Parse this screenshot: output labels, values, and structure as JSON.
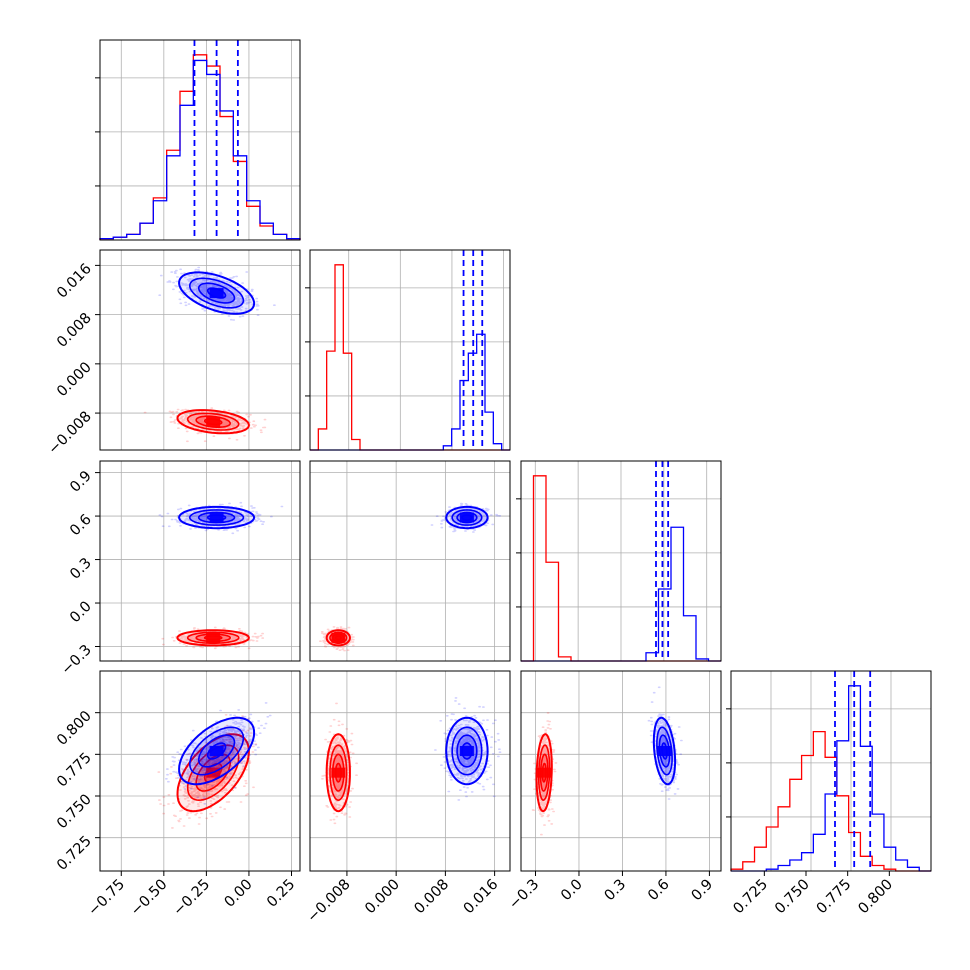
{
  "chart_data": {
    "type": "corner",
    "grid": true,
    "colors": {
      "series_a": "#0000ff",
      "series_b": "#ff0000"
    },
    "series": [
      {
        "color": "#0000ff",
        "means": [
          -0.19,
          0.0115,
          0.59,
          0.777
        ],
        "stds": [
          0.105,
          0.0016,
          0.035,
          0.0095
        ],
        "corrs": [
          [
            0,
            1,
            -0.5
          ],
          [
            0,
            3,
            0.55
          ],
          [
            2,
            3,
            -0.3
          ]
        ],
        "quantiles": {
          "0": [
            -0.32,
            -0.19,
            -0.065
          ],
          "1": [
            0.0098,
            0.0113,
            0.0127
          ],
          "2": [
            0.545,
            0.59,
            0.63
          ],
          "3": [
            0.765,
            0.777,
            0.787
          ]
        }
      },
      {
        "color": "#ff0000",
        "means": [
          -0.21,
          -0.0094,
          -0.24,
          0.764
        ],
        "stds": [
          0.1,
          0.0009,
          0.025,
          0.011
        ],
        "corrs": [
          [
            0,
            1,
            -0.3
          ],
          [
            0,
            3,
            0.55
          ],
          [
            2,
            3,
            0.15
          ]
        ]
      }
    ],
    "hists": [
      {
        "x": [
          -0.875,
          0.3
        ],
        "blue": [
          0.5,
          1,
          2,
          6,
          14,
          30,
          48,
          64,
          59,
          46,
          30,
          14,
          6,
          2,
          0.5
        ],
        "red": [
          0.5,
          1,
          2,
          6,
          15,
          32,
          53,
          66,
          62,
          44,
          28,
          12,
          5,
          2,
          0.5
        ]
      },
      {
        "x": [
          -0.014,
          0.017
        ],
        "blue": [
          0,
          0,
          0,
          0,
          0,
          0,
          0,
          0,
          0,
          0,
          0,
          0,
          0,
          0,
          0,
          0,
          2,
          10,
          33,
          46,
          55,
          18,
          3,
          0
        ],
        "red": [
          0,
          10,
          47,
          88,
          46,
          5,
          0,
          0,
          0,
          0,
          0,
          0,
          0,
          0,
          0,
          0,
          0,
          0,
          0,
          0,
          0,
          0,
          0,
          0
        ]
      },
      {
        "x": [
          -0.4,
          1.0
        ],
        "blue": [
          0,
          0,
          0,
          0,
          0,
          0,
          0,
          0,
          0,
          0,
          4,
          35,
          65,
          22,
          1,
          0
        ],
        "red": [
          0,
          90,
          48,
          2,
          0,
          0,
          0,
          0,
          0,
          0,
          0,
          0,
          0,
          0,
          0,
          0
        ]
      },
      {
        "x": [
          0.7,
          0.825
        ],
        "blue": [
          0,
          0,
          0,
          1,
          3,
          6,
          10,
          20,
          42,
          71,
          101,
          68,
          31,
          13,
          6,
          2,
          0
        ],
        "red": [
          1,
          5,
          13,
          24,
          35,
          50,
          63,
          76,
          62,
          41,
          21,
          8,
          3,
          1,
          0,
          0,
          0
        ]
      }
    ],
    "axes": [
      {
        "range": [
          -0.875,
          0.3
        ],
        "ticks": [
          -0.75,
          -0.5,
          -0.25,
          0,
          0.25
        ],
        "tick_labels": [
          "−0.75",
          "−0.50",
          "−0.25",
          "0.00",
          "0.25"
        ]
      },
      {
        "range": [
          -0.014,
          0.0185
        ],
        "ticks": [
          -0.008,
          0,
          0.008,
          0.016
        ],
        "tick_labels": [
          "−0.008",
          "0.000",
          "0.008",
          "0.016"
        ]
      },
      {
        "range": [
          -0.4,
          0.98
        ],
        "ticks": [
          -0.3,
          0,
          0.3,
          0.6,
          0.9
        ],
        "tick_labels": [
          "−0.3",
          "0.0",
          "0.3",
          "0.6",
          "0.9"
        ]
      },
      {
        "range": [
          0.705,
          0.825
        ],
        "ticks": [
          0.725,
          0.75,
          0.775,
          0.8
        ],
        "tick_labels": [
          "0.725",
          "0.750",
          "0.775",
          "0.800"
        ]
      }
    ]
  }
}
